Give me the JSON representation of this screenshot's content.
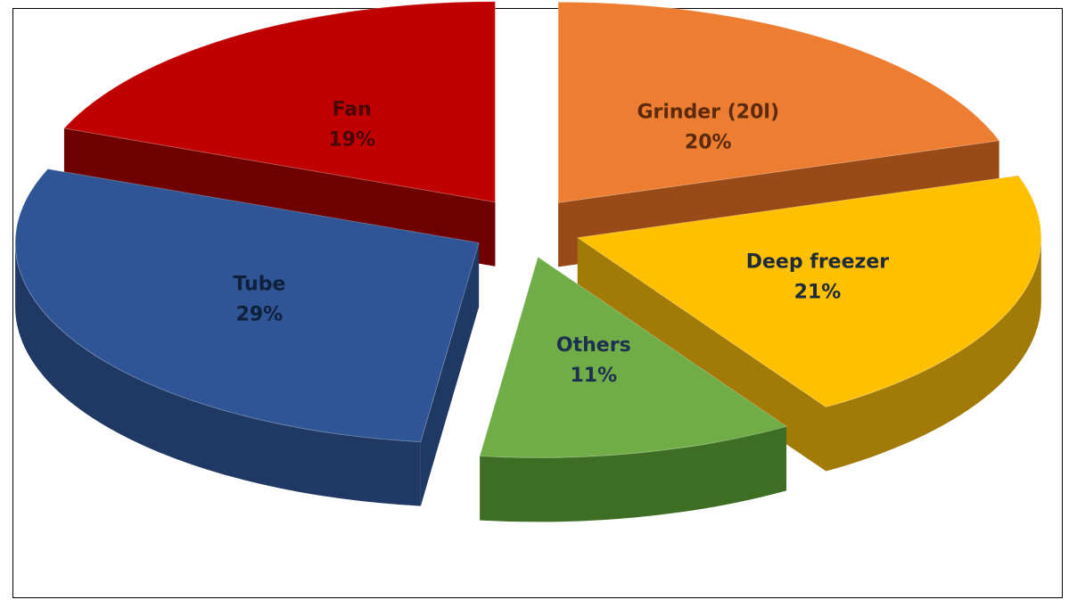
{
  "chart_data": {
    "type": "pie",
    "style": "3d-exploded",
    "title": "",
    "slices": [
      {
        "label": "Grinder (20l)",
        "value": 20,
        "percent_label": "20%",
        "color": "#ED7D31",
        "side_color": "#9A4A16",
        "label_color": "#5C2A0C"
      },
      {
        "label": "Deep freezer",
        "value": 21,
        "percent_label": "21%",
        "color": "#FFC000",
        "side_color": "#A27A07",
        "label_color": "#1E2B3C"
      },
      {
        "label": "Others",
        "value": 11,
        "percent_label": "11%",
        "color": "#70AD47",
        "side_color": "#3E6E24",
        "label_color": "#1E3050"
      },
      {
        "label": "Tube",
        "value": 29,
        "percent_label": "29%",
        "color": "#2F5597",
        "side_color": "#1F3864",
        "label_color": "#10203A"
      },
      {
        "label": "Fan",
        "value": 19,
        "percent_label": "19%",
        "color": "#C00000",
        "side_color": "#6E0000",
        "label_color": "#4A0606"
      }
    ],
    "legend": "none"
  }
}
